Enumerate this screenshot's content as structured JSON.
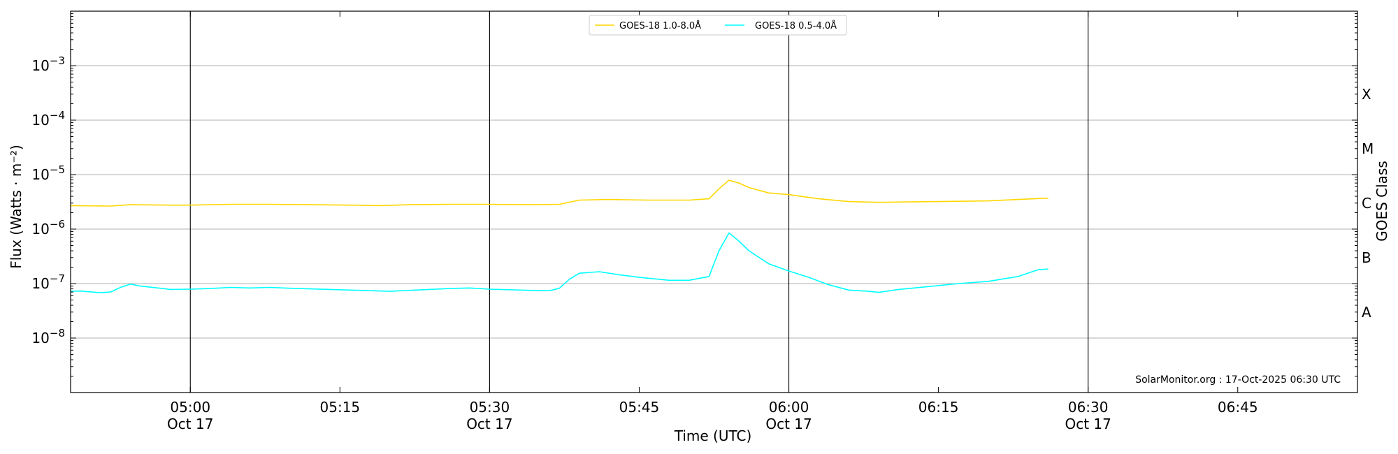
{
  "chart_data": {
    "type": "line",
    "xlabel": "Time (UTC)",
    "ylabel": "Flux (Watts · m⁻²)",
    "y2label": "GOES Class",
    "y_scale": "log",
    "ylim": [
      1e-09,
      0.01
    ],
    "xlim": [
      "2025-10-17 04:48",
      "2025-10-17 06:57"
    ],
    "x_ticks": [
      {
        "time": "05:00",
        "date": "Oct 17"
      },
      {
        "time": "05:15",
        "date": ""
      },
      {
        "time": "05:30",
        "date": "Oct 17"
      },
      {
        "time": "05:45",
        "date": ""
      },
      {
        "time": "06:00",
        "date": "Oct 17"
      },
      {
        "time": "06:15",
        "date": ""
      },
      {
        "time": "06:30",
        "date": "Oct 17"
      },
      {
        "time": "06:45",
        "date": ""
      }
    ],
    "y_ticks": [
      {
        "exp": "-8",
        "value": 1e-08
      },
      {
        "exp": "-7",
        "value": 1e-07
      },
      {
        "exp": "-6",
        "value": 1e-06
      },
      {
        "exp": "-5",
        "value": 1e-05
      },
      {
        "exp": "-4",
        "value": 0.0001
      },
      {
        "exp": "-3",
        "value": 0.001
      }
    ],
    "goes_classes": [
      {
        "label": "A",
        "value": 3e-08
      },
      {
        "label": "B",
        "value": 3e-07
      },
      {
        "label": "C",
        "value": 3e-06
      },
      {
        "label": "M",
        "value": 3e-05
      },
      {
        "label": "X",
        "value": 0.0003
      }
    ],
    "grid": "horizontal at decades; vertical lines every 30 min",
    "legend_position": "top-center",
    "annotation": "SolarMonitor.org : 17-Oct-2025 06:30 UTC",
    "series": [
      {
        "name": "GOES-18 1.0-8.0Å",
        "color": "#FFD700",
        "points": [
          [
            "04:48",
            2.7e-06
          ],
          [
            "04:52",
            2.65e-06
          ],
          [
            "04:54",
            2.8e-06
          ],
          [
            "04:58",
            2.75e-06
          ],
          [
            "05:00",
            2.75e-06
          ],
          [
            "05:04",
            2.85e-06
          ],
          [
            "05:08",
            2.85e-06
          ],
          [
            "05:12",
            2.8e-06
          ],
          [
            "05:16",
            2.75e-06
          ],
          [
            "05:19",
            2.7e-06
          ],
          [
            "05:22",
            2.8e-06
          ],
          [
            "05:26",
            2.85e-06
          ],
          [
            "05:30",
            2.85e-06
          ],
          [
            "05:34",
            2.8e-06
          ],
          [
            "05:37",
            2.85e-06
          ],
          [
            "05:39",
            3.4e-06
          ],
          [
            "05:42",
            3.5e-06
          ],
          [
            "05:46",
            3.4e-06
          ],
          [
            "05:50",
            3.4e-06
          ],
          [
            "05:52",
            3.6e-06
          ],
          [
            "05:53",
            5.5e-06
          ],
          [
            "05:54",
            7.9e-06
          ],
          [
            "05:55",
            7e-06
          ],
          [
            "05:56",
            5.8e-06
          ],
          [
            "05:58",
            4.6e-06
          ],
          [
            "06:00",
            4.3e-06
          ],
          [
            "06:03",
            3.6e-06
          ],
          [
            "06:06",
            3.2e-06
          ],
          [
            "06:09",
            3.1e-06
          ],
          [
            "06:12",
            3.15e-06
          ],
          [
            "06:15",
            3.2e-06
          ],
          [
            "06:20",
            3.3e-06
          ],
          [
            "06:23",
            3.5e-06
          ],
          [
            "06:26",
            3.7e-06
          ]
        ]
      },
      {
        "name": "GOES-18 0.5-4.0Å",
        "color": "#00FFFF",
        "points": [
          [
            "04:48",
            7.2e-08
          ],
          [
            "04:49",
            7.3e-08
          ],
          [
            "04:51",
            6.8e-08
          ],
          [
            "04:52",
            7e-08
          ],
          [
            "04:53",
            8.5e-08
          ],
          [
            "04:54",
            9.8e-08
          ],
          [
            "04:55",
            9e-08
          ],
          [
            "04:57",
            8.2e-08
          ],
          [
            "04:58",
            7.8e-08
          ],
          [
            "05:00",
            7.9e-08
          ],
          [
            "05:02",
            8.1e-08
          ],
          [
            "05:04",
            8.5e-08
          ],
          [
            "05:06",
            8.3e-08
          ],
          [
            "05:08",
            8.5e-08
          ],
          [
            "05:10",
            8.2e-08
          ],
          [
            "05:14",
            7.8e-08
          ],
          [
            "05:17",
            7.5e-08
          ],
          [
            "05:20",
            7.2e-08
          ],
          [
            "05:22",
            7.5e-08
          ],
          [
            "05:26",
            8.1e-08
          ],
          [
            "05:28",
            8.3e-08
          ],
          [
            "05:30",
            7.9e-08
          ],
          [
            "05:34",
            7.5e-08
          ],
          [
            "05:36",
            7.4e-08
          ],
          [
            "05:37",
            8.2e-08
          ],
          [
            "05:38",
            1.2e-07
          ],
          [
            "05:39",
            1.55e-07
          ],
          [
            "05:41",
            1.65e-07
          ],
          [
            "05:43",
            1.45e-07
          ],
          [
            "05:45",
            1.3e-07
          ],
          [
            "05:48",
            1.15e-07
          ],
          [
            "05:50",
            1.15e-07
          ],
          [
            "05:52",
            1.35e-07
          ],
          [
            "05:53",
            4e-07
          ],
          [
            "05:54",
            8.5e-07
          ],
          [
            "05:55",
            6e-07
          ],
          [
            "05:56",
            4e-07
          ],
          [
            "05:58",
            2.3e-07
          ],
          [
            "06:00",
            1.7e-07
          ],
          [
            "06:02",
            1.3e-07
          ],
          [
            "06:04",
            9.5e-08
          ],
          [
            "06:06",
            7.6e-08
          ],
          [
            "06:08",
            7.2e-08
          ],
          [
            "06:09",
            6.9e-08
          ],
          [
            "06:11",
            7.8e-08
          ],
          [
            "06:14",
            8.8e-08
          ],
          [
            "06:17",
            1e-07
          ],
          [
            "06:20",
            1.1e-07
          ],
          [
            "06:23",
            1.35e-07
          ],
          [
            "06:25",
            1.8e-07
          ],
          [
            "06:26",
            1.85e-07
          ]
        ]
      }
    ]
  }
}
